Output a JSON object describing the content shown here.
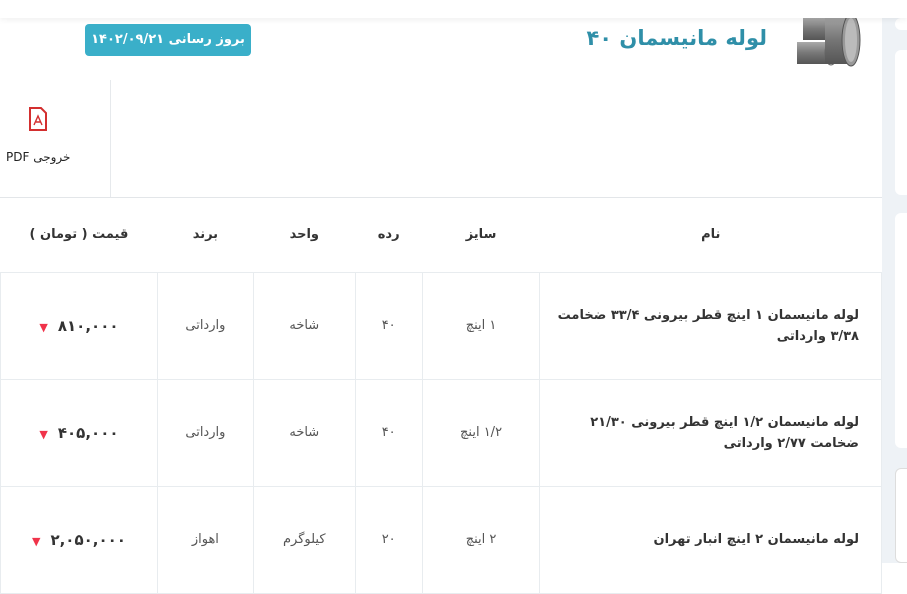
{
  "header": {
    "title": "لوله مانیسمان ۴۰",
    "update_badge": "بروز رسانی ۱۴۰۲/۰۹/۲۱",
    "product_image": "steel-pipes"
  },
  "tools": {
    "pdf_label": "خروجی PDF",
    "pdf_icon": "pdf-icon"
  },
  "table": {
    "headers": {
      "name": "نام",
      "size": "سایز",
      "grade": "رده",
      "unit": "واحد",
      "brand": "برند",
      "price": "قیمت ( تومان )"
    },
    "rows": [
      {
        "name": "لوله مانیسمان ۱ اینچ قطر بیرونی ۳۳/۴ ضخامت ۳/۳۸ وارداتی",
        "size": "۱ اینچ",
        "grade": "۴۰",
        "unit": "شاخه",
        "brand": "وارداتی",
        "price": "۸۱۰,۰۰۰",
        "trend": "down"
      },
      {
        "name": "لوله مانیسمان ۱/۲ اینچ قطر بیرونی ۲۱/۳۰ ضخامت ۲/۷۷ وارداتی",
        "size": "۱/۲ اینچ",
        "grade": "۴۰",
        "unit": "شاخه",
        "brand": "وارداتی",
        "price": "۴۰۵,۰۰۰",
        "trend": "down"
      },
      {
        "name": "لوله مانیسمان ۲ اینچ انبار تهران",
        "size": "۲ اینچ",
        "grade": "۲۰",
        "unit": "کیلوگرم",
        "brand": "اهواز",
        "price": "۲,۰۵۰,۰۰۰",
        "trend": "down"
      }
    ]
  },
  "colors": {
    "accent": "#3aafc9",
    "title": "#2f8fa8",
    "down": "#f0334a"
  }
}
